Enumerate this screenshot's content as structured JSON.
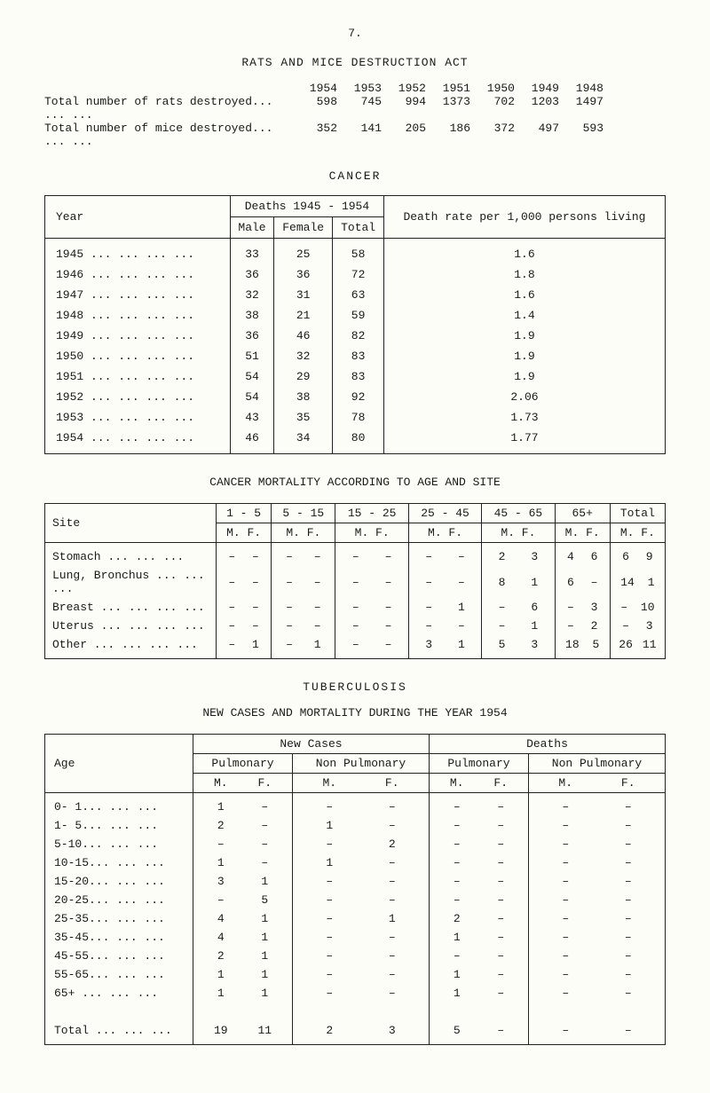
{
  "page_number": "7.",
  "rats_section": {
    "title": "RATS AND MICE DESTRUCTION ACT",
    "year_labels": [
      "1954",
      "1953",
      "1952",
      "1951",
      "1950",
      "1949",
      "1948"
    ],
    "rows": [
      {
        "label": "Total number of rats destroyed...  ...  ...",
        "values": [
          "598",
          "745",
          "994",
          "1373",
          "702",
          "1203",
          "1497"
        ]
      },
      {
        "label": "Total number of mice destroyed...  ...  ...",
        "values": [
          "352",
          "141",
          "205",
          "186",
          "372",
          "497",
          "593"
        ]
      }
    ]
  },
  "cancer_section": {
    "title": "CANCER",
    "header": {
      "year": "Year",
      "deaths_span": "Deaths   1945 - 1954",
      "male": "Male",
      "female": "Female",
      "total": "Total",
      "rate": "Death rate per 1,000 persons living"
    },
    "rows": [
      {
        "year": "1945 ...  ...  ...  ...",
        "m": "33",
        "f": "25",
        "t": "58",
        "r": "1.6"
      },
      {
        "year": "1946 ...  ...  ...  ...",
        "m": "36",
        "f": "36",
        "t": "72",
        "r": "1.8"
      },
      {
        "year": "1947 ...  ...  ...  ...",
        "m": "32",
        "f": "31",
        "t": "63",
        "r": "1.6"
      },
      {
        "year": "1948 ...  ...  ...  ...",
        "m": "38",
        "f": "21",
        "t": "59",
        "r": "1.4"
      },
      {
        "year": "1949 ...  ...  ...  ...",
        "m": "36",
        "f": "46",
        "t": "82",
        "r": "1.9"
      },
      {
        "year": "1950 ...  ...  ...  ...",
        "m": "51",
        "f": "32",
        "t": "83",
        "r": "1.9"
      },
      {
        "year": "1951 ...  ...  ...  ...",
        "m": "54",
        "f": "29",
        "t": "83",
        "r": "1.9"
      },
      {
        "year": "1952 ...  ...  ...  ...",
        "m": "54",
        "f": "38",
        "t": "92",
        "r": "2.06"
      },
      {
        "year": "1953 ...  ...  ...  ...",
        "m": "43",
        "f": "35",
        "t": "78",
        "r": "1.73"
      },
      {
        "year": "1954 ...  ...  ...  ...",
        "m": "46",
        "f": "34",
        "t": "80",
        "r": "1.77"
      }
    ]
  },
  "mortality_section": {
    "title": "CANCER MORTALITY ACCORDING TO AGE AND SITE",
    "header": {
      "site": "Site",
      "cols": [
        "1 - 5",
        "5 - 15",
        "15 - 25",
        "25 - 45",
        "45 - 65",
        "65+",
        "Total"
      ],
      "mf": "M.  F."
    },
    "rows": [
      {
        "site": "Stomach       ...  ...  ...",
        "cells": [
          [
            "–",
            "–"
          ],
          [
            "–",
            "–"
          ],
          [
            "–",
            "–"
          ],
          [
            "–",
            "–"
          ],
          [
            "2",
            "3"
          ],
          [
            "4",
            "6"
          ],
          [
            "6",
            "9"
          ]
        ]
      },
      {
        "site": "Lung, Bronchus ...  ...  ...",
        "cells": [
          [
            "–",
            "–"
          ],
          [
            "–",
            "–"
          ],
          [
            "–",
            "–"
          ],
          [
            "–",
            "–"
          ],
          [
            "8",
            "1"
          ],
          [
            "6",
            "–"
          ],
          [
            "14",
            "1"
          ]
        ]
      },
      {
        "site": "Breast     ...  ...  ...  ...",
        "cells": [
          [
            "–",
            "–"
          ],
          [
            "–",
            "–"
          ],
          [
            "–",
            "–"
          ],
          [
            "–",
            "1"
          ],
          [
            "–",
            "6"
          ],
          [
            "–",
            "3"
          ],
          [
            "–",
            "10"
          ]
        ]
      },
      {
        "site": "Uterus     ...  ...  ...  ...",
        "cells": [
          [
            "–",
            "–"
          ],
          [
            "–",
            "–"
          ],
          [
            "–",
            "–"
          ],
          [
            "–",
            "–"
          ],
          [
            "–",
            "1"
          ],
          [
            "–",
            "2"
          ],
          [
            "–",
            "3"
          ]
        ]
      },
      {
        "site": "Other      ...  ...  ...  ...",
        "cells": [
          [
            "–",
            "1"
          ],
          [
            "–",
            "1"
          ],
          [
            "–",
            "–"
          ],
          [
            "3",
            "1"
          ],
          [
            "5",
            "3"
          ],
          [
            "18",
            "5"
          ],
          [
            "26",
            "11"
          ]
        ]
      }
    ]
  },
  "tb_section": {
    "title": "TUBERCULOSIS",
    "subtitle": "NEW CASES AND MORTALITY DURING THE YEAR 1954",
    "header": {
      "age": "Age",
      "new_cases": "New Cases",
      "deaths": "Deaths",
      "pulmonary": "Pulmonary",
      "non_pulmonary": "Non Pulmonary",
      "mf_m": "M.",
      "mf_f": "F."
    },
    "rows": [
      {
        "age": "0- 1...  ...  ...",
        "nc_p": [
          "1",
          "–"
        ],
        "nc_np": [
          "–",
          "–"
        ],
        "d_p": [
          "–",
          "–"
        ],
        "d_np": [
          "–",
          "–"
        ]
      },
      {
        "age": "1- 5...  ...  ...",
        "nc_p": [
          "2",
          "–"
        ],
        "nc_np": [
          "1",
          "–"
        ],
        "d_p": [
          "–",
          "–"
        ],
        "d_np": [
          "–",
          "–"
        ]
      },
      {
        "age": "5-10...  ...  ...",
        "nc_p": [
          "–",
          "–"
        ],
        "nc_np": [
          "–",
          "2"
        ],
        "d_p": [
          "–",
          "–"
        ],
        "d_np": [
          "–",
          "–"
        ]
      },
      {
        "age": "10-15...  ...  ...",
        "nc_p": [
          "1",
          "–"
        ],
        "nc_np": [
          "1",
          "–"
        ],
        "d_p": [
          "–",
          "–"
        ],
        "d_np": [
          "–",
          "–"
        ]
      },
      {
        "age": "15-20...  ...  ...",
        "nc_p": [
          "3",
          "1"
        ],
        "nc_np": [
          "–",
          "–"
        ],
        "d_p": [
          "–",
          "–"
        ],
        "d_np": [
          "–",
          "–"
        ]
      },
      {
        "age": "20-25...  ...  ...",
        "nc_p": [
          "–",
          "5"
        ],
        "nc_np": [
          "–",
          "–"
        ],
        "d_p": [
          "–",
          "–"
        ],
        "d_np": [
          "–",
          "–"
        ]
      },
      {
        "age": "25-35...  ...  ...",
        "nc_p": [
          "4",
          "1"
        ],
        "nc_np": [
          "–",
          "1"
        ],
        "d_p": [
          "2",
          "–"
        ],
        "d_np": [
          "–",
          "–"
        ]
      },
      {
        "age": "35-45...  ...  ...",
        "nc_p": [
          "4",
          "1"
        ],
        "nc_np": [
          "–",
          "–"
        ],
        "d_p": [
          "1",
          "–"
        ],
        "d_np": [
          "–",
          "–"
        ]
      },
      {
        "age": "45-55...  ...  ...",
        "nc_p": [
          "2",
          "1"
        ],
        "nc_np": [
          "–",
          "–"
        ],
        "d_p": [
          "–",
          "–"
        ],
        "d_np": [
          "–",
          "–"
        ]
      },
      {
        "age": "55-65...  ...  ...",
        "nc_p": [
          "1",
          "1"
        ],
        "nc_np": [
          "–",
          "–"
        ],
        "d_p": [
          "1",
          "–"
        ],
        "d_np": [
          "–",
          "–"
        ]
      },
      {
        "age": "65+  ...  ...  ...",
        "nc_p": [
          "1",
          "1"
        ],
        "nc_np": [
          "–",
          "–"
        ],
        "d_p": [
          "1",
          "–"
        ],
        "d_np": [
          "–",
          "–"
        ]
      }
    ],
    "total_label": "Total ...  ...  ...",
    "total": {
      "nc_p": [
        "19",
        "11"
      ],
      "nc_np": [
        "2",
        "3"
      ],
      "d_p": [
        "5",
        "–"
      ],
      "d_np": [
        "–",
        "–"
      ]
    }
  }
}
